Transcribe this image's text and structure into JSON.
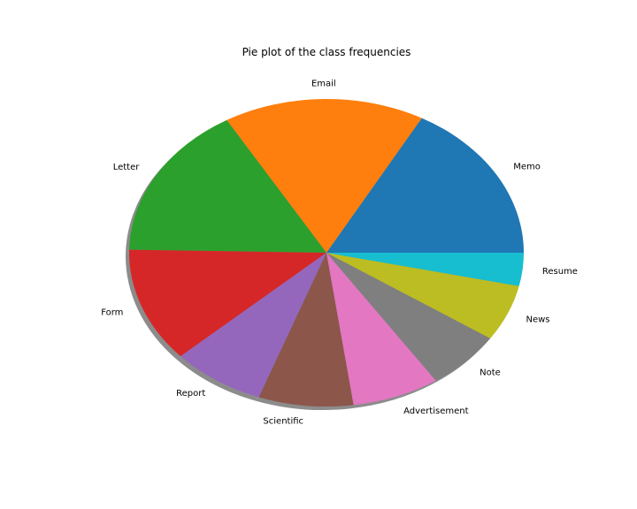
{
  "chart_data": {
    "type": "pie",
    "title": "Pie plot of the class frequencies",
    "shadow": true,
    "start_angle_deg": 0,
    "direction": "counterclockwise",
    "slices": [
      {
        "label": "Memo",
        "value": 16.6,
        "color": "#1f77b4"
      },
      {
        "label": "Email",
        "value": 16.1,
        "color": "#ff7f0e"
      },
      {
        "label": "Letter",
        "value": 15.9,
        "color": "#2ca02c"
      },
      {
        "label": "Form",
        "value": 11.8,
        "color": "#d62728"
      },
      {
        "label": "Report",
        "value": 7.5,
        "color": "#9467bd"
      },
      {
        "label": "Scientific",
        "value": 7.6,
        "color": "#8c564b"
      },
      {
        "label": "Advertisement",
        "value": 7.0,
        "color": "#e377c2"
      },
      {
        "label": "Note",
        "value": 6.1,
        "color": "#7f7f7f"
      },
      {
        "label": "News",
        "value": 5.8,
        "color": "#bcbd22"
      },
      {
        "label": "Resume",
        "value": 3.4,
        "color": "#17becf"
      }
    ]
  }
}
